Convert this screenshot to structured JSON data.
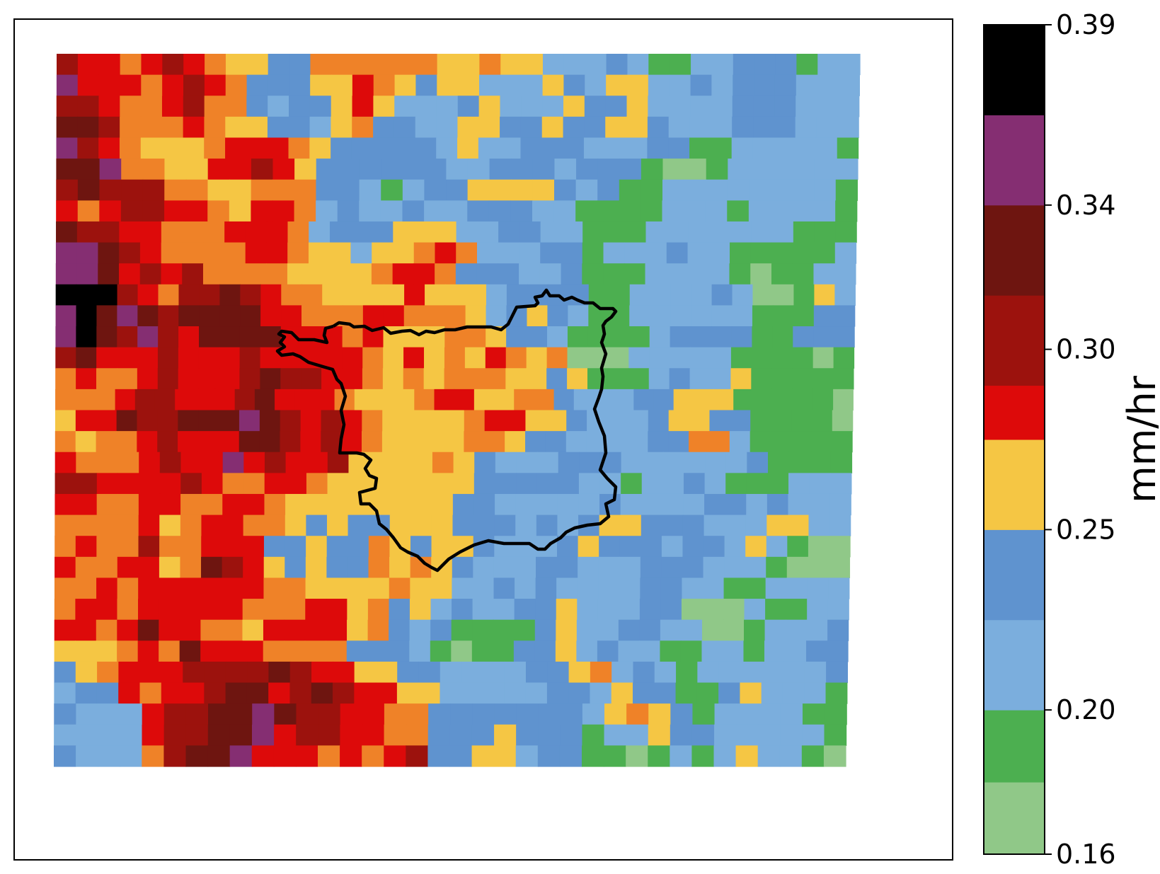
{
  "colorbar": {
    "unit": "mm/hr",
    "ticks": [
      "0.16",
      "0.20",
      "0.25",
      "0.30",
      "0.34",
      "0.39"
    ],
    "bands": [
      {
        "from": 0.16,
        "to": 0.18,
        "color": "#90c888"
      },
      {
        "from": 0.18,
        "to": 0.2,
        "color": "#4caf50"
      },
      {
        "from": 0.2,
        "to": 0.225,
        "color": "#7baedd"
      },
      {
        "from": 0.225,
        "to": 0.25,
        "color": "#5f93cf"
      },
      {
        "from": 0.25,
        "to": 0.275,
        "color": "#f5c644"
      },
      {
        "from": 0.275,
        "to": 0.29,
        "color": "#dd0a0a"
      },
      {
        "from": 0.29,
        "to": 0.315,
        "color": "#9c120d"
      },
      {
        "from": 0.315,
        "to": 0.34,
        "color": "#6e1510"
      },
      {
        "from": 0.34,
        "to": 0.365,
        "color": "#852e72"
      },
      {
        "from": 0.365,
        "to": 0.39,
        "color": "#000000"
      }
    ]
  },
  "map_colors": {
    "lg": "#90c888",
    "g": "#4caf50",
    "lb": "#7baedd",
    "b": "#5f93cf",
    "y": "#f5c644",
    "o": "#ef8228",
    "r": "#dd0a0a",
    "dr": "#9c120d",
    "br": "#6e1510",
    "p": "#852e72",
    "k": "#000000"
  },
  "boundary": {
    "color": "#000000",
    "description": "outlined region"
  }
}
